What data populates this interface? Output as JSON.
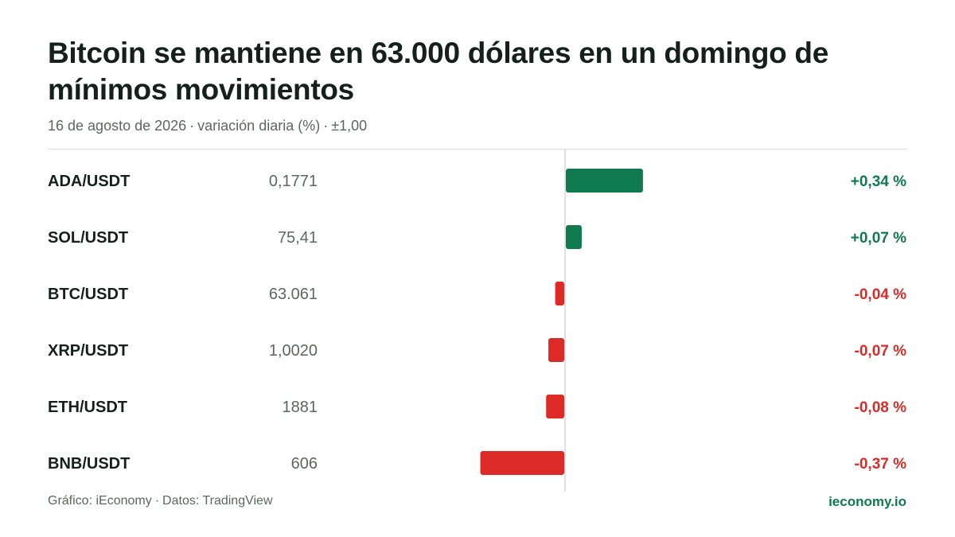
{
  "header": {
    "title": "Bitcoin se mantiene en 63.000 dólares en un domingo de mínimos movimientos",
    "subtitle_date": "16 de agosto de 2026",
    "subtitle_metric": "variación diaria (%)",
    "subtitle_range": "±1,00"
  },
  "footer": {
    "source": "Gráfico: iEconomy",
    "data": "Datos: TradingView",
    "brand": "ieconomy.io"
  },
  "colors": {
    "positive": "#0f7a4e",
    "negative": "#dc2a27",
    "text": "#14201b",
    "muted": "#5d6661",
    "axis": "#d5d7d6"
  },
  "chart_data": {
    "type": "bar",
    "orientation": "horizontal",
    "xlim": [
      -1.0,
      1.0
    ],
    "unit": "%",
    "categories": [
      "ADA/USDT",
      "SOL/USDT",
      "BTC/USDT",
      "XRP/USDT",
      "ETH/USDT",
      "BNB/USDT"
    ],
    "prices": [
      "0,1771",
      "75,41",
      "63.061",
      "1,0020",
      "1881",
      "606"
    ],
    "values": [
      0.34,
      0.07,
      -0.04,
      -0.07,
      -0.08,
      -0.37
    ],
    "value_labels": [
      "+0,34 %",
      "+0,07 %",
      "-0,04 %",
      "-0,07 %",
      "-0,08 %",
      "-0,37 %"
    ]
  }
}
